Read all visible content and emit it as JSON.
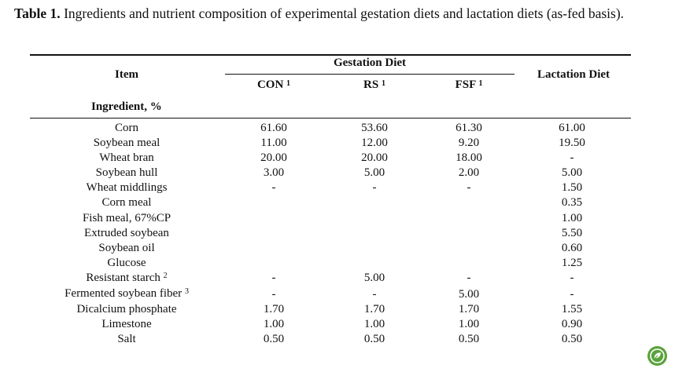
{
  "caption": {
    "label": "Table 1.",
    "text": "Ingredients and nutrient composition of experimental gestation diets and lactation diets (as-fed basis)."
  },
  "header": {
    "item": "Item",
    "gestation": "Gestation Diet",
    "lactation": "Lactation Diet",
    "con": "CON",
    "rs": "RS",
    "fsf": "FSF",
    "note_mark": "1"
  },
  "section_label": "Ingredient, %",
  "rows": [
    {
      "name": "Corn",
      "sup": "",
      "con": "61.60",
      "rs": "53.60",
      "fsf": "61.30",
      "lac": "61.00"
    },
    {
      "name": "Soybean meal",
      "sup": "",
      "con": "11.00",
      "rs": "12.00",
      "fsf": "9.20",
      "lac": "19.50"
    },
    {
      "name": "Wheat bran",
      "sup": "",
      "con": "20.00",
      "rs": "20.00",
      "fsf": "18.00",
      "lac": "-"
    },
    {
      "name": "Soybean hull",
      "sup": "",
      "con": "3.00",
      "rs": "5.00",
      "fsf": "2.00",
      "lac": "5.00"
    },
    {
      "name": "Wheat middlings",
      "sup": "",
      "con": "-",
      "rs": "-",
      "fsf": "-",
      "lac": "1.50"
    },
    {
      "name": "Corn meal",
      "sup": "",
      "con": "",
      "rs": "",
      "fsf": "",
      "lac": "0.35"
    },
    {
      "name": "Fish meal, 67%CP",
      "sup": "",
      "con": "",
      "rs": "",
      "fsf": "",
      "lac": "1.00"
    },
    {
      "name": "Extruded soybean",
      "sup": "",
      "con": "",
      "rs": "",
      "fsf": "",
      "lac": "5.50"
    },
    {
      "name": "Soybean oil",
      "sup": "",
      "con": "",
      "rs": "",
      "fsf": "",
      "lac": "0.60"
    },
    {
      "name": "Glucose",
      "sup": "",
      "con": "",
      "rs": "",
      "fsf": "",
      "lac": "1.25"
    },
    {
      "name": "Resistant starch",
      "sup": "2",
      "con": "-",
      "rs": "5.00",
      "fsf": "-",
      "lac": "-"
    },
    {
      "name": "Fermented soybean fiber",
      "sup": "3",
      "con": "-",
      "rs": "-",
      "fsf": "5.00",
      "lac": "-"
    },
    {
      "name": "Dicalcium phosphate",
      "sup": "",
      "con": "1.70",
      "rs": "1.70",
      "fsf": "1.70",
      "lac": "1.55"
    },
    {
      "name": "Limestone",
      "sup": "",
      "con": "1.00",
      "rs": "1.00",
      "fsf": "1.00",
      "lac": "0.90"
    },
    {
      "name": "Salt",
      "sup": "",
      "con": "0.50",
      "rs": "0.50",
      "fsf": "0.50",
      "lac": "0.50"
    }
  ],
  "logo_icon": "publisher-leaf-icon",
  "accent_color": "#5aa23c"
}
